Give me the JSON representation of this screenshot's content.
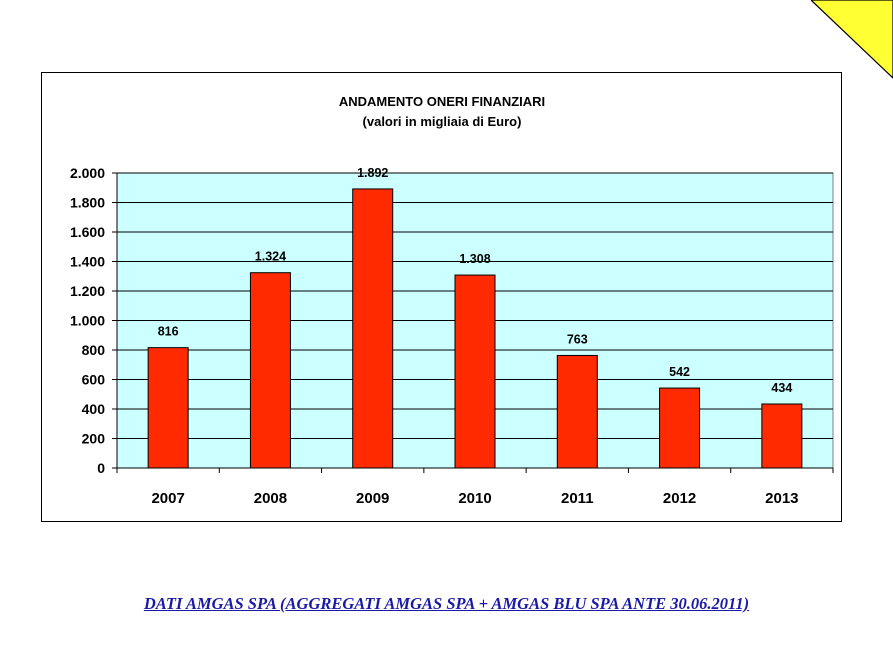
{
  "chart_data": {
    "type": "bar",
    "title": "ANDAMENTO ONERI FINANZIARI",
    "subtitle": "(valori in migliaia di Euro)",
    "categories": [
      "2007",
      "2008",
      "2009",
      "2010",
      "2011",
      "2012",
      "2013"
    ],
    "values": [
      816,
      1324,
      1892,
      1308,
      763,
      542,
      434
    ],
    "value_labels": [
      "816",
      "1.324",
      "1.892",
      "1.308",
      "763",
      "542",
      "434"
    ],
    "ylim": [
      0,
      2000
    ],
    "yticks": [
      0,
      200,
      400,
      600,
      800,
      1000,
      1200,
      1400,
      1600,
      1800,
      2000
    ],
    "ytick_labels": [
      "0",
      "200",
      "400",
      "600",
      "800",
      "1.000",
      "1.200",
      "1.400",
      "1.600",
      "1.800",
      "2.000"
    ],
    "xlabel": "",
    "ylabel": "",
    "grid": true,
    "legend": "none",
    "colors": {
      "bar": "#ff2a00",
      "plot_background": "#ccffff",
      "gridline": "#000000"
    }
  },
  "footer": {
    "link_text": "DATI AMGAS SPA (AGGREGATI AMGAS SPA + AMGAS BLU SPA ANTE 30.06.2011)",
    "color": "#1a1aa6"
  },
  "decoration": {
    "corner_triangle_color": "#ffff33",
    "corner_icon": "page-corner-triangle-icon"
  }
}
